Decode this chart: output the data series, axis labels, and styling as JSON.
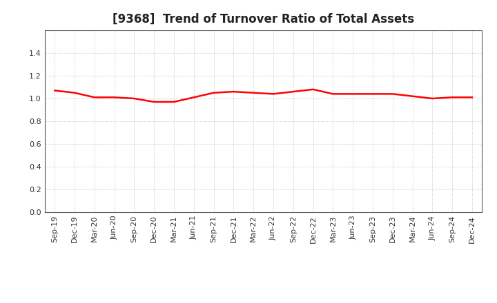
{
  "title": "[9368]  Trend of Turnover Ratio of Total Assets",
  "title_fontsize": 12,
  "title_fontweight": "bold",
  "line_color": "#FF0000",
  "line_width": 1.8,
  "background_color": "#FFFFFF",
  "grid_color": "#AAAAAA",
  "spine_color": "#555555",
  "ylim": [
    0.0,
    1.6
  ],
  "yticks": [
    0.0,
    0.2,
    0.4,
    0.6,
    0.8,
    1.0,
    1.2,
    1.4
  ],
  "x_labels": [
    "Sep-19",
    "Dec-19",
    "Mar-20",
    "Jun-20",
    "Sep-20",
    "Dec-20",
    "Mar-21",
    "Jun-21",
    "Sep-21",
    "Dec-21",
    "Mar-22",
    "Jun-22",
    "Sep-22",
    "Dec-22",
    "Mar-23",
    "Jun-23",
    "Sep-23",
    "Dec-23",
    "Mar-24",
    "Jun-24",
    "Sep-24",
    "Dec-24"
  ],
  "values": [
    1.07,
    1.05,
    1.01,
    1.01,
    1.0,
    0.97,
    0.97,
    1.01,
    1.05,
    1.06,
    1.05,
    1.04,
    1.06,
    1.08,
    1.04,
    1.04,
    1.04,
    1.04,
    1.02,
    1.0,
    1.01,
    1.01
  ]
}
